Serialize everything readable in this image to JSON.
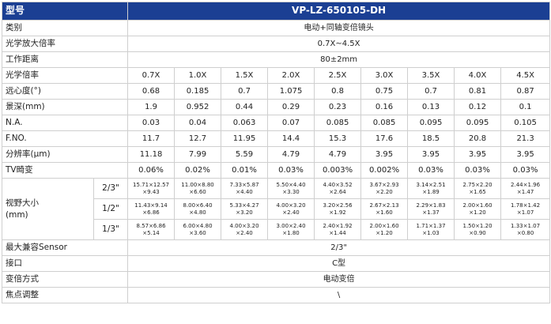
{
  "header": {
    "label": "型号",
    "model": "VP-LZ-650105-DH"
  },
  "rows_full": [
    {
      "label": "类别",
      "value": "电动+同轴变倍镜头"
    },
    {
      "label": "光学放大倍率",
      "value": "0.7X~4.5X"
    },
    {
      "label": "工作距离",
      "value": "80±2mm"
    }
  ],
  "rows_multi": [
    {
      "label": "光学倍率",
      "values": [
        "0.7X",
        "1.0X",
        "1.5X",
        "2.0X",
        "2.5X",
        "3.0X",
        "3.5X",
        "4.0X",
        "4.5X"
      ]
    },
    {
      "label": "远心度(°)",
      "values": [
        "0.68",
        "0.185",
        "0.7",
        "1.075",
        "0.8",
        "0.75",
        "0.7",
        "0.81",
        "0.87"
      ]
    },
    {
      "label": "景深(mm)",
      "values": [
        "1.9",
        "0.952",
        "0.44",
        "0.29",
        "0.23",
        "0.16",
        "0.13",
        "0.12",
        "0.1"
      ]
    },
    {
      "label": "N.A.",
      "values": [
        "0.03",
        "0.04",
        "0.063",
        "0.07",
        "0.085",
        "0.085",
        "0.095",
        "0.095",
        "0.105"
      ]
    },
    {
      "label": "F.NO.",
      "values": [
        "11.7",
        "12.7",
        "11.95",
        "14.4",
        "15.3",
        "17.6",
        "18.5",
        "20.8",
        "21.3"
      ]
    },
    {
      "label": "分辨率(μm)",
      "values": [
        "11.18",
        "7.99",
        "5.59",
        "4.79",
        "4.79",
        "3.95",
        "3.95",
        "3.95",
        "3.95"
      ]
    },
    {
      "label": "TV畸变",
      "values": [
        "0.06%",
        "0.02%",
        "0.01%",
        "0.03%",
        "0.003%",
        "0.002%",
        "0.03%",
        "0.03%",
        "0.03%"
      ]
    }
  ],
  "field_of_view": {
    "label_line1": "视野大小",
    "label_line2": "(mm)",
    "rows": [
      {
        "sensor": "2/3\"",
        "cells": [
          [
            "15.71×12.57",
            "×9.43"
          ],
          [
            "11.00×8.80",
            "×6.60"
          ],
          [
            "7.33×5.87",
            "×4.40"
          ],
          [
            "5.50×4.40",
            "×3.30"
          ],
          [
            "4.40×3.52",
            "×2.64"
          ],
          [
            "3.67×2.93",
            "×2.20"
          ],
          [
            "3.14×2.51",
            "×1.89"
          ],
          [
            "2.75×2.20",
            "×1.65"
          ],
          [
            "2.44×1.96",
            "×1.47"
          ]
        ]
      },
      {
        "sensor": "1/2\"",
        "cells": [
          [
            "11.43×9.14",
            "×6.86"
          ],
          [
            "8.00×6.40",
            "×4.80"
          ],
          [
            "5.33×4.27",
            "×3.20"
          ],
          [
            "4.00×3.20",
            "×2.40"
          ],
          [
            "3.20×2.56",
            "×1.92"
          ],
          [
            "2.67×2.13",
            "×1.60"
          ],
          [
            "2.29×1.83",
            "×1.37"
          ],
          [
            "2.00×1.60",
            "×1.20"
          ],
          [
            "1.78×1.42",
            "×1.07"
          ]
        ]
      },
      {
        "sensor": "1/3\"",
        "cells": [
          [
            "8.57×6.86",
            "×5.14"
          ],
          [
            "6.00×4.80",
            "×3.60"
          ],
          [
            "4.00×3.20",
            "×2.40"
          ],
          [
            "3.00×2.40",
            "×1.80"
          ],
          [
            "2.40×1.92",
            "×1.44"
          ],
          [
            "2.00×1.60",
            "×1.20"
          ],
          [
            "1.71×1.37",
            "×1.03"
          ],
          [
            "1.50×1.20",
            "×0.90"
          ],
          [
            "1.33×1.07",
            "×0.80"
          ]
        ]
      }
    ]
  },
  "rows_bottom": [
    {
      "label": "最大兼容Sensor",
      "value": "2/3\""
    },
    {
      "label": "接口",
      "value": "C型"
    },
    {
      "label": "变倍方式",
      "value": "电动变倍"
    },
    {
      "label": "焦点调整",
      "value": "\\"
    }
  ]
}
